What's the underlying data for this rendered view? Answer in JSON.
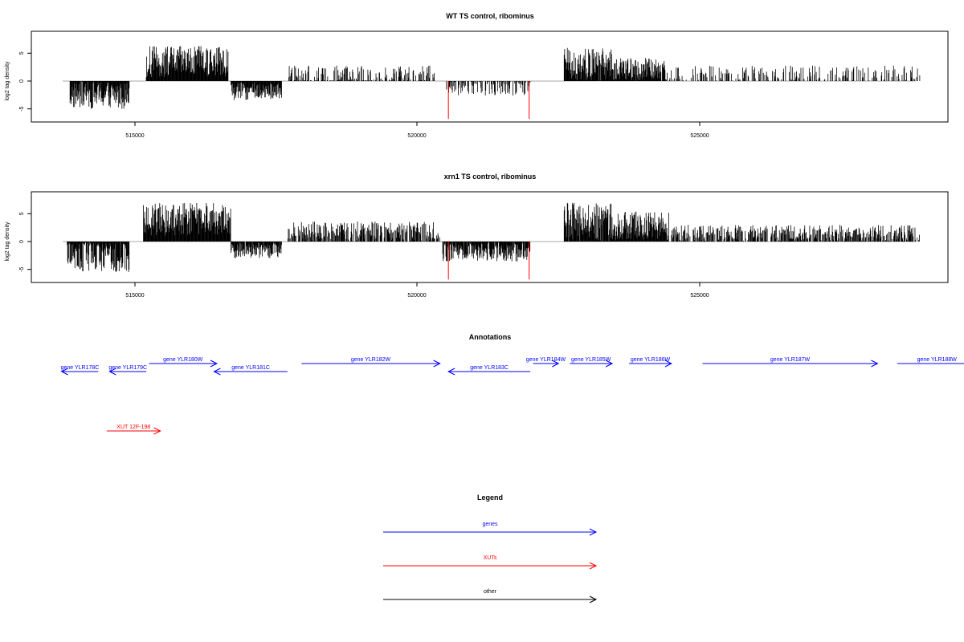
{
  "chart_data": [
    {
      "type": "bar",
      "title": "WT TS control, ribominus",
      "ylabel": "log2 tag density",
      "xlim": [
        513700,
        529200
      ],
      "ylim": [
        -7,
        9
      ],
      "y_ticks": [
        "-5",
        "0",
        "5"
      ],
      "x_ticks": [
        "515000",
        "520000",
        "525000"
      ],
      "grid": false,
      "baseline_color": "#aaaaaa",
      "bar_color": "#000000",
      "highlight_color": "#ff0000",
      "segments": [
        {
          "from": 513850,
          "to": 514900,
          "mean": -2.5,
          "var": 2.5
        },
        {
          "from": 515200,
          "to": 516650,
          "mean": 3.5,
          "var": 2.8
        },
        {
          "from": 516700,
          "to": 517600,
          "mean": -1.8,
          "var": 1.6
        },
        {
          "from": 517700,
          "to": 520300,
          "mean": 1.0,
          "var": 1.8,
          "density": 0.45
        },
        {
          "from": 520500,
          "to": 522000,
          "mean": -1.2,
          "var": 1.4,
          "density": 0.55
        },
        {
          "from": 522600,
          "to": 523450,
          "mean": 3.0,
          "var": 3.0
        },
        {
          "from": 523450,
          "to": 524400,
          "mean": 2.0,
          "var": 2.2
        },
        {
          "from": 524400,
          "to": 528900,
          "mean": 1.3,
          "var": 1.5,
          "density": 0.35
        }
      ],
      "highlights": [
        {
          "x": 520550,
          "value": -6.8
        },
        {
          "x": 521980,
          "value": -6.8
        }
      ]
    },
    {
      "type": "bar",
      "title": "xrn1 TS control, ribominus",
      "ylabel": "log2 tag density",
      "xlim": [
        513700,
        529200
      ],
      "ylim": [
        -7,
        9
      ],
      "y_ticks": [
        "-5",
        "0",
        "5"
      ],
      "x_ticks": [
        "515000",
        "520000",
        "525000"
      ],
      "grid": false,
      "baseline_color": "#aaaaaa",
      "bar_color": "#000000",
      "highlight_color": "#ff0000",
      "segments": [
        {
          "from": 513800,
          "to": 514900,
          "mean": -2.5,
          "var": 3.0
        },
        {
          "from": 515150,
          "to": 516700,
          "mean": 4.0,
          "var": 3.0
        },
        {
          "from": 516700,
          "to": 517600,
          "mean": -1.5,
          "var": 1.5
        },
        {
          "from": 517700,
          "to": 520400,
          "mean": 1.8,
          "var": 1.8,
          "density": 0.7
        },
        {
          "from": 520450,
          "to": 522000,
          "mean": -1.8,
          "var": 1.8
        },
        {
          "from": 522600,
          "to": 523450,
          "mean": 3.5,
          "var": 3.5
        },
        {
          "from": 523450,
          "to": 524450,
          "mean": 2.8,
          "var": 2.6
        },
        {
          "from": 524500,
          "to": 528900,
          "mean": 1.5,
          "var": 1.5,
          "density": 0.7
        }
      ],
      "highlights": [
        {
          "x": 520550,
          "value": -6.8
        },
        {
          "x": 521980,
          "value": -6.8
        }
      ]
    }
  ],
  "annotations": {
    "title": "Annotations",
    "features": [
      {
        "label": "gene YLR178C",
        "kind": "genes",
        "strand": "-",
        "from": 513700,
        "to": 514350,
        "row": 1
      },
      {
        "label": "gene YLR179C",
        "kind": "genes",
        "strand": "-",
        "from": 514550,
        "to": 515200,
        "row": 1
      },
      {
        "label": "gene YLR180W",
        "kind": "genes",
        "strand": "+",
        "from": 515250,
        "to": 516450,
        "row": 0
      },
      {
        "label": "gene YLR181C",
        "kind": "genes",
        "strand": "-",
        "from": 516400,
        "to": 517700,
        "row": 1
      },
      {
        "label": "gene YLR182W",
        "kind": "genes",
        "strand": "+",
        "from": 517950,
        "to": 520400,
        "row": 0
      },
      {
        "label": "gene YLR183C",
        "kind": "genes",
        "strand": "-",
        "from": 520550,
        "to": 522000,
        "row": 1
      },
      {
        "label": "gene YLR184W",
        "kind": "genes",
        "strand": "+",
        "from": 522050,
        "to": 522500,
        "row": 0
      },
      {
        "label": "gene YLR185W",
        "kind": "genes",
        "strand": "+",
        "from": 522700,
        "to": 523450,
        "row": 0
      },
      {
        "label": "gene YLR186W",
        "kind": "genes",
        "strand": "+",
        "from": 523750,
        "to": 524500,
        "row": 0
      },
      {
        "label": "gene YLR187W",
        "kind": "genes",
        "strand": "+",
        "from": 525050,
        "to": 528150,
        "row": 0
      },
      {
        "label": "gene YLR188W",
        "kind": "genes",
        "strand": "+",
        "from": 528500,
        "to": 529900,
        "row": 0
      },
      {
        "label": "XUT 12F-198",
        "kind": "XUTs",
        "strand": "+",
        "from": 514500,
        "to": 515450,
        "row": 2
      }
    ]
  },
  "legend": {
    "title": "Legend",
    "items": [
      {
        "label": "genes",
        "color": "#0000ff"
      },
      {
        "label": "XUTs",
        "color": "#ff0000"
      },
      {
        "label": "other",
        "color": "#000000"
      }
    ]
  }
}
